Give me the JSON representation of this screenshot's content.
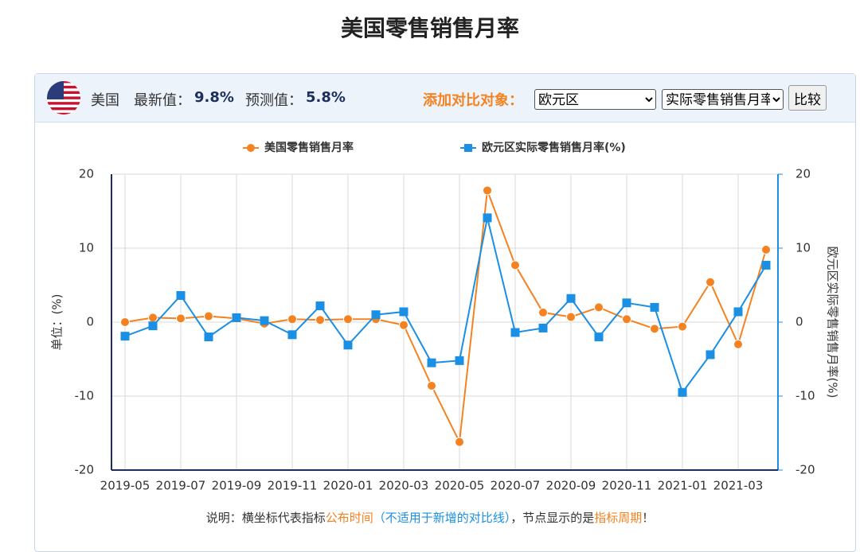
{
  "page_title": "美国零售销售月率",
  "header": {
    "country": "美国",
    "latest_label": "最新值：",
    "latest_value": "9.8%",
    "forecast_label": "预测值：",
    "forecast_value": "5.8%"
  },
  "controls": {
    "compare_label": "添加对比对象：",
    "region": "欧元区",
    "indicator": "实际零售销售月率",
    "button": "比较"
  },
  "note": {
    "parts": [
      "说明：横坐标代表指标",
      "公布时间",
      "（不适用于新增的对比线）",
      "，节点显示的是",
      "指标周期",
      "！"
    ]
  },
  "chart_data": {
    "type": "line",
    "categories": [
      "2019-05",
      null,
      "2019-07",
      null,
      "2019-09",
      null,
      "2019-11",
      null,
      "2020-01",
      null,
      "2020-03",
      null,
      "2020-05",
      null,
      "2020-07",
      null,
      "2020-09",
      null,
      "2020-11",
      null,
      "2021-01",
      null,
      "2021-03",
      null
    ],
    "series": [
      {
        "name": "美国零售销售月率",
        "color": "#f58220",
        "marker": "circle",
        "values": [
          0.0,
          0.6,
          0.5,
          0.8,
          0.5,
          -0.2,
          0.4,
          0.3,
          0.4,
          0.4,
          -0.4,
          -8.6,
          -16.2,
          17.8,
          7.7,
          1.3,
          0.7,
          2.0,
          0.4,
          -0.9,
          -0.6,
          5.4,
          -3.0,
          9.8
        ]
      },
      {
        "name": "欧元区实际零售销售月率(%)",
        "color": "#1a8fe3",
        "marker": "square",
        "axis": "y2",
        "values": [
          -1.9,
          -0.5,
          3.6,
          -2.0,
          0.6,
          0.2,
          -1.7,
          2.2,
          -3.1,
          1.0,
          1.4,
          -5.5,
          -5.2,
          14.1,
          -1.4,
          -0.8,
          3.2,
          -2.0,
          2.6,
          2.0,
          -9.5,
          -4.4,
          1.4,
          7.7
        ]
      }
    ],
    "y_label": "单位：(%)",
    "y2_label": "欧元区实际零售销售月率(%)",
    "ylim": [
      -20,
      20
    ],
    "yticks": [
      -20,
      -10,
      0,
      10,
      20
    ],
    "y2lim": [
      -20,
      20
    ],
    "y2ticks": [
      -20,
      -10,
      0,
      10,
      20
    ],
    "grid": true,
    "legend": "top"
  }
}
